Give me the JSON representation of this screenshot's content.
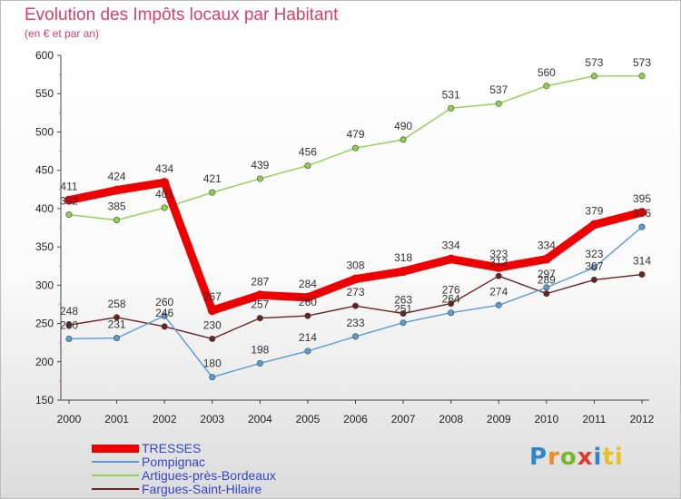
{
  "chart_data": {
    "type": "line",
    "title": "Evolution des Impôts locaux par Habitant",
    "subtitle": "(en € et par an)",
    "x": [
      "2000",
      "2001",
      "2002",
      "2003",
      "2004",
      "2005",
      "2006",
      "2007",
      "2008",
      "2009",
      "2010",
      "2011",
      "2012"
    ],
    "yticks": [
      150,
      200,
      250,
      300,
      350,
      400,
      450,
      500,
      550,
      600
    ],
    "ylim": [
      150,
      600
    ],
    "grid": false,
    "legend_position": "bottom-left",
    "series": [
      {
        "name": "TRESSES",
        "color": "#ee0000",
        "values": [
          411,
          424,
          434,
          267,
          287,
          284,
          308,
          318,
          334,
          323,
          334,
          379,
          395
        ]
      },
      {
        "name": "Pompignac",
        "color": "#5b9bd5",
        "values": [
          230,
          231,
          260,
          180,
          198,
          214,
          233,
          251,
          264,
          274,
          297,
          323,
          376
        ]
      },
      {
        "name": "Artigues-près-Bordeaux",
        "color": "#8fd14f",
        "values": [
          392,
          385,
          401,
          421,
          439,
          456,
          479,
          490,
          531,
          537,
          560,
          573,
          573
        ]
      },
      {
        "name": "Fargues-Saint-Hilaire",
        "color": "#6b2226",
        "values": [
          248,
          258,
          246,
          230,
          257,
          260,
          273,
          263,
          276,
          312,
          289,
          307,
          314
        ]
      }
    ]
  },
  "branding": {
    "logo_text": "Proxiti"
  }
}
